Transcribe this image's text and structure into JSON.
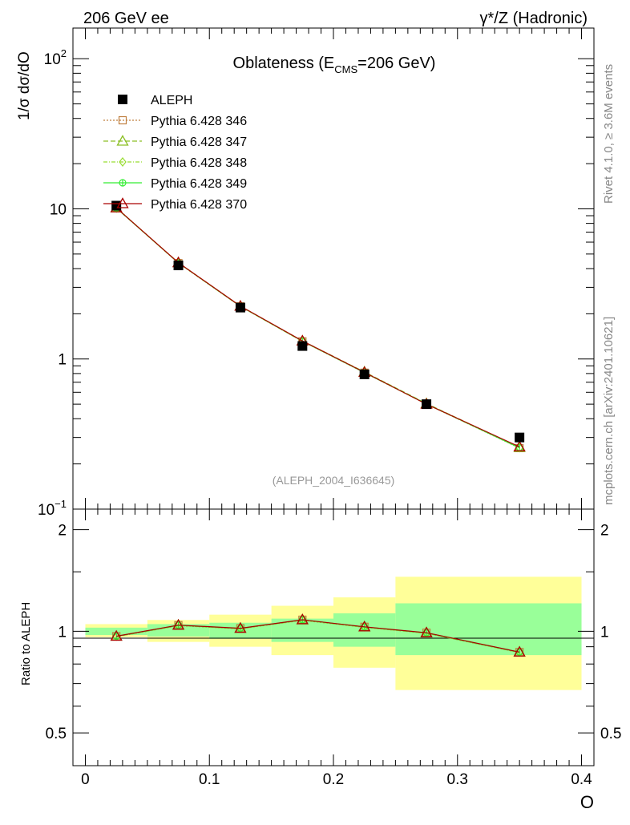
{
  "header": {
    "left": "206 GeV ee",
    "right": "γ*/Z (Hadronic)"
  },
  "side_labels": {
    "rivet": "Rivet 4.1.0, ≥ 3.6M events",
    "mcplots": "mcplots.cern.ch [arXiv:2401.10621]"
  },
  "chart_data": {
    "type": "line",
    "title": "Oblateness (E_CMS=206 GeV)",
    "title_parts": {
      "main": "Oblateness (E",
      "sub": "CMS",
      "rest": "=206 GeV)"
    },
    "ylabel": "1/σ  dσ/dO",
    "xlabel": "O",
    "ratio_ylabel": "Ratio to ALEPH",
    "analysis_tag": "(ALEPH_2004_I636645)",
    "yscale": "log",
    "ylim": [
      0.1,
      160
    ],
    "xlim": [
      -0.01,
      0.41
    ],
    "ratio_ylim": [
      0.4,
      2.3
    ],
    "x_ticks": [
      "0",
      "0.1",
      "0.2",
      "0.3",
      "0.4"
    ],
    "y_ticks": [
      {
        "value": 0.1,
        "base": "10",
        "exp": "−1"
      },
      {
        "value": 1,
        "base": "1",
        "exp": ""
      },
      {
        "value": 10,
        "base": "10",
        "exp": ""
      },
      {
        "value": 100,
        "base": "10",
        "exp": "2"
      }
    ],
    "ratio_ticks": [
      "0.5",
      "1",
      "2"
    ],
    "legend_position": "top-left",
    "x": [
      0.025,
      0.075,
      0.125,
      0.175,
      0.225,
      0.275,
      0.35
    ],
    "bin_edges": [
      0.0,
      0.05,
      0.1,
      0.15,
      0.2,
      0.25,
      0.3,
      0.4
    ],
    "data": {
      "name": "ALEPH",
      "values": [
        10.5,
        4.2,
        2.2,
        1.22,
        0.79,
        0.5,
        0.3
      ]
    },
    "bands": [
      {
        "x0": 0.0,
        "x1": 0.05,
        "inner": [
          0.975,
          1.025
        ],
        "outer": [
          0.96,
          1.05
        ]
      },
      {
        "x0": 0.05,
        "x1": 0.1,
        "inner": [
          0.965,
          1.05
        ],
        "outer": [
          0.93,
          1.08
        ]
      },
      {
        "x0": 0.1,
        "x1": 0.15,
        "inner": [
          0.95,
          1.06
        ],
        "outer": [
          0.9,
          1.12
        ]
      },
      {
        "x0": 0.15,
        "x1": 0.2,
        "inner": [
          0.93,
          1.09
        ],
        "outer": [
          0.85,
          1.19
        ]
      },
      {
        "x0": 0.2,
        "x1": 0.25,
        "inner": [
          0.9,
          1.13
        ],
        "outer": [
          0.78,
          1.26
        ]
      },
      {
        "x0": 0.25,
        "x1": 0.4,
        "inner": [
          0.85,
          1.21
        ],
        "outer": [
          0.67,
          1.45
        ]
      }
    ],
    "series": [
      {
        "name": "Pythia 6.428 346",
        "marker": "square-open",
        "color": "#c08040",
        "dash": "2,2",
        "values": [
          10.2,
          4.35,
          2.24,
          1.31,
          0.81,
          0.5,
          0.255
        ]
      },
      {
        "name": "Pythia 6.428 347",
        "marker": "triangle-open",
        "color": "#8cbf26",
        "dash": "6,3",
        "values": [
          10.15,
          4.38,
          2.25,
          1.32,
          0.82,
          0.505,
          0.257
        ]
      },
      {
        "name": "Pythia 6.428 348",
        "marker": "diamond-open",
        "color": "#99dd33",
        "dash": "5,2,1,2",
        "values": [
          10.1,
          4.36,
          2.24,
          1.31,
          0.815,
          0.5,
          0.256
        ]
      },
      {
        "name": "Pythia 6.428 349",
        "marker": "circle-cross",
        "color": "#33ee33",
        "dash": "",
        "values": [
          10.12,
          4.37,
          2.245,
          1.315,
          0.812,
          0.502,
          0.256
        ]
      },
      {
        "name": "Pythia 6.428 370",
        "marker": "triangle-open",
        "color": "#aa0000",
        "dash": "",
        "values": [
          10.15,
          4.38,
          2.25,
          1.32,
          0.815,
          0.5,
          0.26
        ]
      }
    ],
    "ratios": [
      0.967,
      1.043,
      1.021,
      1.082,
      1.031,
      0.99,
      0.868
    ]
  }
}
